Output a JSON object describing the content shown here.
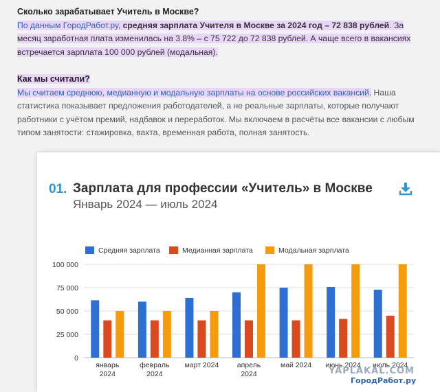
{
  "article": {
    "heading1": "Сколько зарабатывает Учитель в Москве?",
    "p1_a": "По данным ГородРабот.ру, ",
    "p1_b": "средняя зарплата Учителя в Москве за 2024 год – 72 838 рублей",
    "p1_c": ". За месяц заработная плата изменилась на 3.8% – с 75 722 до 72 838 рублей. А чаще всего в вакансиях встречается зарплата 100 000 рублей (модальная).",
    "heading2": "Как мы считали?",
    "p2_a": "Мы считаем среднюю, медианную и модальную зарплаты на основе российских вакансий.",
    "p2_b": " Наша статистика показывает предложения работодателей, а не реальные зарплаты, которые получают работники с учётом премий, надбавок и переработок. Мы включаем в расчёты все вакансии с любым типом занятости: стажировка, вахта, временная работа, полная занятость."
  },
  "card": {
    "number": "01.",
    "title": "Зарплата для профессии «Учитель» в Москве",
    "subtitle": "Январь 2024 — июль 2024",
    "download_icon": "download-icon"
  },
  "watermarks": {
    "yaplakal": "YAPLAKAL.COM",
    "gorodrabot": "ГородРабот.ру"
  },
  "chart_data": {
    "type": "bar",
    "categories": [
      "январь 2024",
      "февраль 2024",
      "март 2024",
      "апрель 2024",
      "май 2024",
      "июнь 2024",
      "июль 2024"
    ],
    "series": [
      {
        "name": "Средняя зарплата",
        "color": "#2e6fd4",
        "values": [
          61500,
          60000,
          64000,
          70000,
          75000,
          75722,
          72838
        ]
      },
      {
        "name": "Медианная зарплата",
        "color": "#d94a1e",
        "values": [
          40000,
          40000,
          40000,
          40000,
          40000,
          41500,
          45000
        ]
      },
      {
        "name": "Модальная зарплата",
        "color": "#f59c0c",
        "values": [
          50000,
          50000,
          50000,
          100000,
          100000,
          100000,
          100000
        ]
      }
    ],
    "yticks": [
      "0",
      "25 000",
      "50 000",
      "75 000",
      "100 000"
    ],
    "ylim": [
      0,
      100000
    ],
    "grid": true,
    "legend": "top"
  }
}
